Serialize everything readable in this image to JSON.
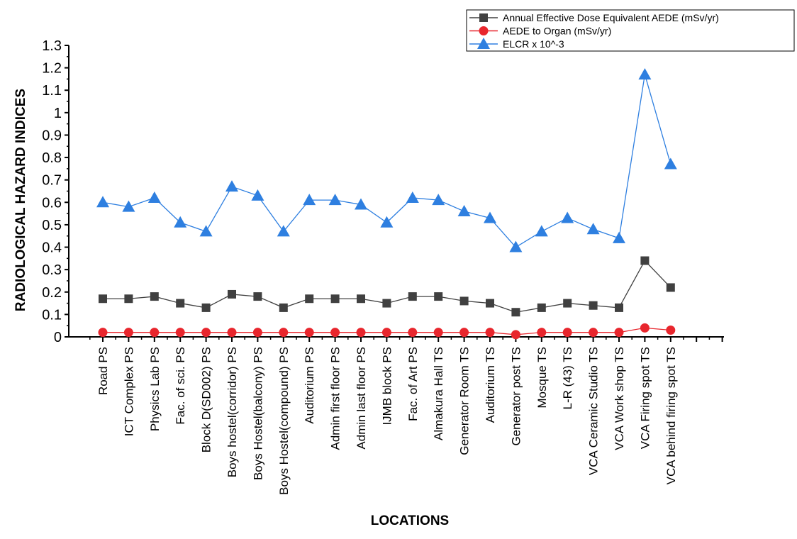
{
  "chart_data": {
    "type": "line",
    "title": "",
    "xlabel": "LOCATIONS",
    "ylabel": "RADIOLOGICAL HAZARD INDICES",
    "ylim": [
      0,
      1.3
    ],
    "yticks": [
      "0",
      "0.1",
      "0.2",
      "0.3",
      "0.4",
      "0.5",
      "0.6",
      "0.7",
      "0.8",
      "0.9",
      "1",
      "1.1",
      "1.2",
      "1.3"
    ],
    "grid": false,
    "legend_position": "top-right",
    "categories": [
      "Road PS",
      "ICT Complex PS",
      "Physics Lab PS",
      "Fac. of sci. PS",
      "Block D(SD002) PS",
      "Boys hostel(corridor) PS",
      "Boys Hostel(balcony) PS",
      "Boys Hostel(compound) PS",
      "Auditorium PS",
      "Admin first floor PS",
      "Admin last floor PS",
      "IJMB block PS",
      "Fac. of Art PS",
      "Almakura Hall TS",
      "Generator Room TS",
      "Auditorium TS",
      "Generator post TS",
      "Mosque TS",
      "L-R (43) TS",
      "VCA Ceramic Studio TS",
      "VCA Work shop TS",
      "VCA Firing spot TS",
      "VCA behind firing spot TS"
    ],
    "series": [
      {
        "name": "Annual Effective Dose Equivalent AEDE (mSv/yr)",
        "color": "#404040",
        "marker": "square",
        "values": [
          0.17,
          0.17,
          0.18,
          0.15,
          0.13,
          0.19,
          0.18,
          0.13,
          0.17,
          0.17,
          0.17,
          0.15,
          0.18,
          0.18,
          0.16,
          0.15,
          0.11,
          0.13,
          0.15,
          0.14,
          0.13,
          0.34,
          0.22
        ]
      },
      {
        "name": "AEDE to Organ (mSv/yr)",
        "color": "#e8262d",
        "marker": "circle",
        "values": [
          0.02,
          0.02,
          0.02,
          0.02,
          0.02,
          0.02,
          0.02,
          0.02,
          0.02,
          0.02,
          0.02,
          0.02,
          0.02,
          0.02,
          0.02,
          0.02,
          0.01,
          0.02,
          0.02,
          0.02,
          0.02,
          0.04,
          0.03
        ]
      },
      {
        "name": "ELCR x 10^-3",
        "color": "#2e7fe0",
        "marker": "triangle",
        "values": [
          0.6,
          0.58,
          0.62,
          0.51,
          0.47,
          0.67,
          0.63,
          0.47,
          0.61,
          0.61,
          0.59,
          0.51,
          0.62,
          0.61,
          0.56,
          0.53,
          0.4,
          0.47,
          0.53,
          0.48,
          0.44,
          1.17,
          0.77
        ]
      }
    ]
  }
}
